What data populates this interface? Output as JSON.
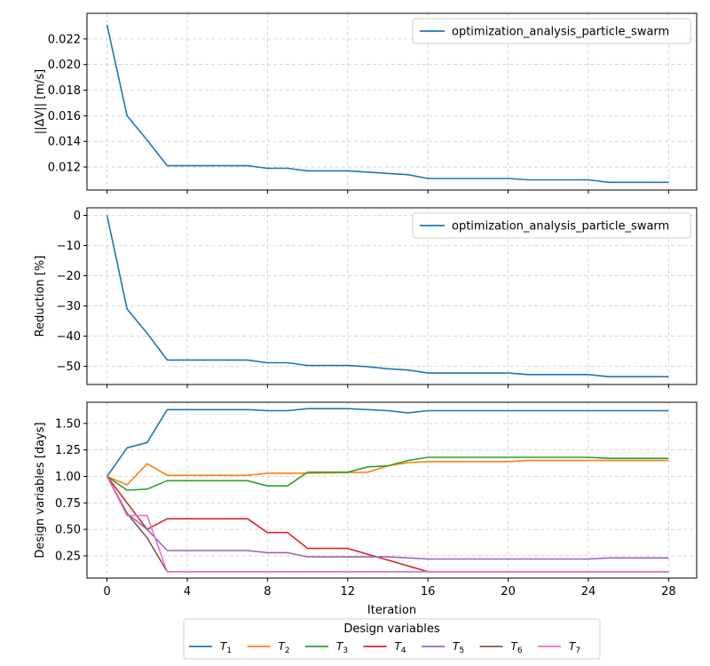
{
  "chart_data": [
    {
      "type": "line",
      "ylabel": "||ΔV|| [m/s]",
      "xlim": [
        -1,
        29.4
      ],
      "ylim": [
        0.0102,
        0.024
      ],
      "yticks": [
        0.012,
        0.014,
        0.016,
        0.018,
        0.02,
        0.022
      ],
      "ytick_labels": [
        "0.012",
        "0.014",
        "0.016",
        "0.018",
        "0.020",
        "0.022"
      ],
      "grid": true,
      "legend_position": "upper-right",
      "series": [
        {
          "name": "optimization_analysis_particle_swarm",
          "color": "#1f77b4",
          "x": [
            0,
            1,
            2,
            3,
            4,
            5,
            6,
            7,
            8,
            9,
            10,
            11,
            12,
            13,
            14,
            15,
            16,
            17,
            18,
            19,
            20,
            21,
            22,
            23,
            24,
            25,
            26,
            27,
            28
          ],
          "y": [
            0.0231,
            0.016,
            0.0141,
            0.0121,
            0.0121,
            0.0121,
            0.0121,
            0.0121,
            0.0119,
            0.0119,
            0.0117,
            0.0117,
            0.0117,
            0.0116,
            0.0115,
            0.0114,
            0.0111,
            0.0111,
            0.0111,
            0.0111,
            0.0111,
            0.011,
            0.011,
            0.011,
            0.011,
            0.0108,
            0.0108,
            0.0108,
            0.0108
          ]
        }
      ]
    },
    {
      "type": "line",
      "ylabel": "Reduction [%]",
      "xlim": [
        -1,
        29.4
      ],
      "ylim": [
        -56,
        2.5
      ],
      "yticks": [
        0,
        -10,
        -20,
        -30,
        -40,
        -50
      ],
      "ytick_labels": [
        "0",
        "−10",
        "−20",
        "−30",
        "−40",
        "−50"
      ],
      "grid": true,
      "legend_position": "upper-right",
      "series": [
        {
          "name": "optimization_analysis_particle_swarm",
          "color": "#1f77b4",
          "x": [
            0,
            1,
            2,
            3,
            4,
            5,
            6,
            7,
            8,
            9,
            10,
            11,
            12,
            13,
            14,
            15,
            16,
            17,
            18,
            19,
            20,
            21,
            22,
            23,
            24,
            25,
            26,
            27,
            28
          ],
          "y": [
            0,
            -31,
            -39,
            -47.9,
            -47.9,
            -47.9,
            -47.9,
            -47.9,
            -48.8,
            -48.8,
            -49.7,
            -49.7,
            -49.7,
            -50.1,
            -50.8,
            -51.2,
            -52.2,
            -52.2,
            -52.2,
            -52.2,
            -52.2,
            -52.7,
            -52.7,
            -52.7,
            -52.7,
            -53.4,
            -53.4,
            -53.4,
            -53.4
          ]
        }
      ]
    },
    {
      "type": "line",
      "ylabel": "Design variables [days]",
      "xlabel": "Iteration",
      "xlim": [
        -1,
        29.4
      ],
      "ylim": [
        0.04,
        1.7
      ],
      "yticks": [
        0.25,
        0.5,
        0.75,
        1.0,
        1.25,
        1.5
      ],
      "ytick_labels": [
        "0.25",
        "0.50",
        "0.75",
        "1.00",
        "1.25",
        "1.50"
      ],
      "xticks": [
        0,
        4,
        8,
        12,
        16,
        20,
        24,
        28
      ],
      "xtick_labels": [
        "0",
        "4",
        "8",
        "12",
        "16",
        "20",
        "24",
        "28"
      ],
      "grid": true,
      "legend_title": "Design variables",
      "legend_position": "below",
      "series": [
        {
          "name": "T1",
          "label_base": "T",
          "label_sub": "1",
          "color": "#1f77b4",
          "x": [
            0,
            1,
            2,
            3,
            7,
            8,
            9,
            10,
            12,
            14,
            15,
            16,
            20,
            24,
            25,
            28
          ],
          "y": [
            1.0,
            1.27,
            1.32,
            1.63,
            1.63,
            1.62,
            1.62,
            1.64,
            1.64,
            1.62,
            1.6,
            1.62,
            1.62,
            1.62,
            1.62,
            1.62
          ]
        },
        {
          "name": "T2",
          "label_base": "T",
          "label_sub": "2",
          "color": "#ff7f0e",
          "x": [
            0,
            1,
            2,
            3,
            7,
            8,
            10,
            13,
            14,
            15,
            16,
            20,
            21,
            24,
            25,
            28
          ],
          "y": [
            1.0,
            0.92,
            1.12,
            1.01,
            1.01,
            1.03,
            1.03,
            1.04,
            1.1,
            1.13,
            1.14,
            1.14,
            1.15,
            1.15,
            1.15,
            1.15
          ]
        },
        {
          "name": "T3",
          "label_base": "T",
          "label_sub": "3",
          "color": "#2ca02c",
          "x": [
            0,
            1,
            2,
            3,
            7,
            8,
            9,
            10,
            12,
            13,
            14,
            15,
            16,
            20,
            24,
            25,
            28
          ],
          "y": [
            1.0,
            0.87,
            0.88,
            0.96,
            0.96,
            0.91,
            0.91,
            1.04,
            1.04,
            1.09,
            1.1,
            1.15,
            1.18,
            1.18,
            1.18,
            1.17,
            1.17
          ]
        },
        {
          "name": "T4",
          "label_base": "T",
          "label_sub": "4",
          "color": "#d62728",
          "x": [
            0,
            1,
            2,
            3,
            7,
            8,
            9,
            10,
            12,
            16,
            20,
            24,
            28
          ],
          "y": [
            1.0,
            0.75,
            0.5,
            0.6,
            0.6,
            0.47,
            0.47,
            0.32,
            0.32,
            0.1,
            0.1,
            0.1,
            0.1
          ]
        },
        {
          "name": "T5",
          "label_base": "T",
          "label_sub": "5",
          "color": "#9467bd",
          "x": [
            0,
            1,
            2,
            3,
            7,
            8,
            9,
            10,
            14,
            16,
            20,
            21,
            24,
            25,
            28
          ],
          "y": [
            1.0,
            0.65,
            0.5,
            0.3,
            0.3,
            0.28,
            0.28,
            0.24,
            0.24,
            0.22,
            0.22,
            0.22,
            0.22,
            0.23,
            0.23
          ]
        },
        {
          "name": "T6",
          "label_base": "T",
          "label_sub": "6",
          "color": "#8c564b",
          "x": [
            0,
            1,
            2,
            3,
            28
          ],
          "y": [
            1.0,
            0.65,
            0.42,
            0.1,
            0.1
          ]
        },
        {
          "name": "T7",
          "label_base": "T",
          "label_sub": "7",
          "color": "#e377c2",
          "x": [
            0,
            1,
            2,
            3,
            28
          ],
          "y": [
            1.0,
            0.63,
            0.63,
            0.1,
            0.1
          ]
        }
      ]
    }
  ]
}
